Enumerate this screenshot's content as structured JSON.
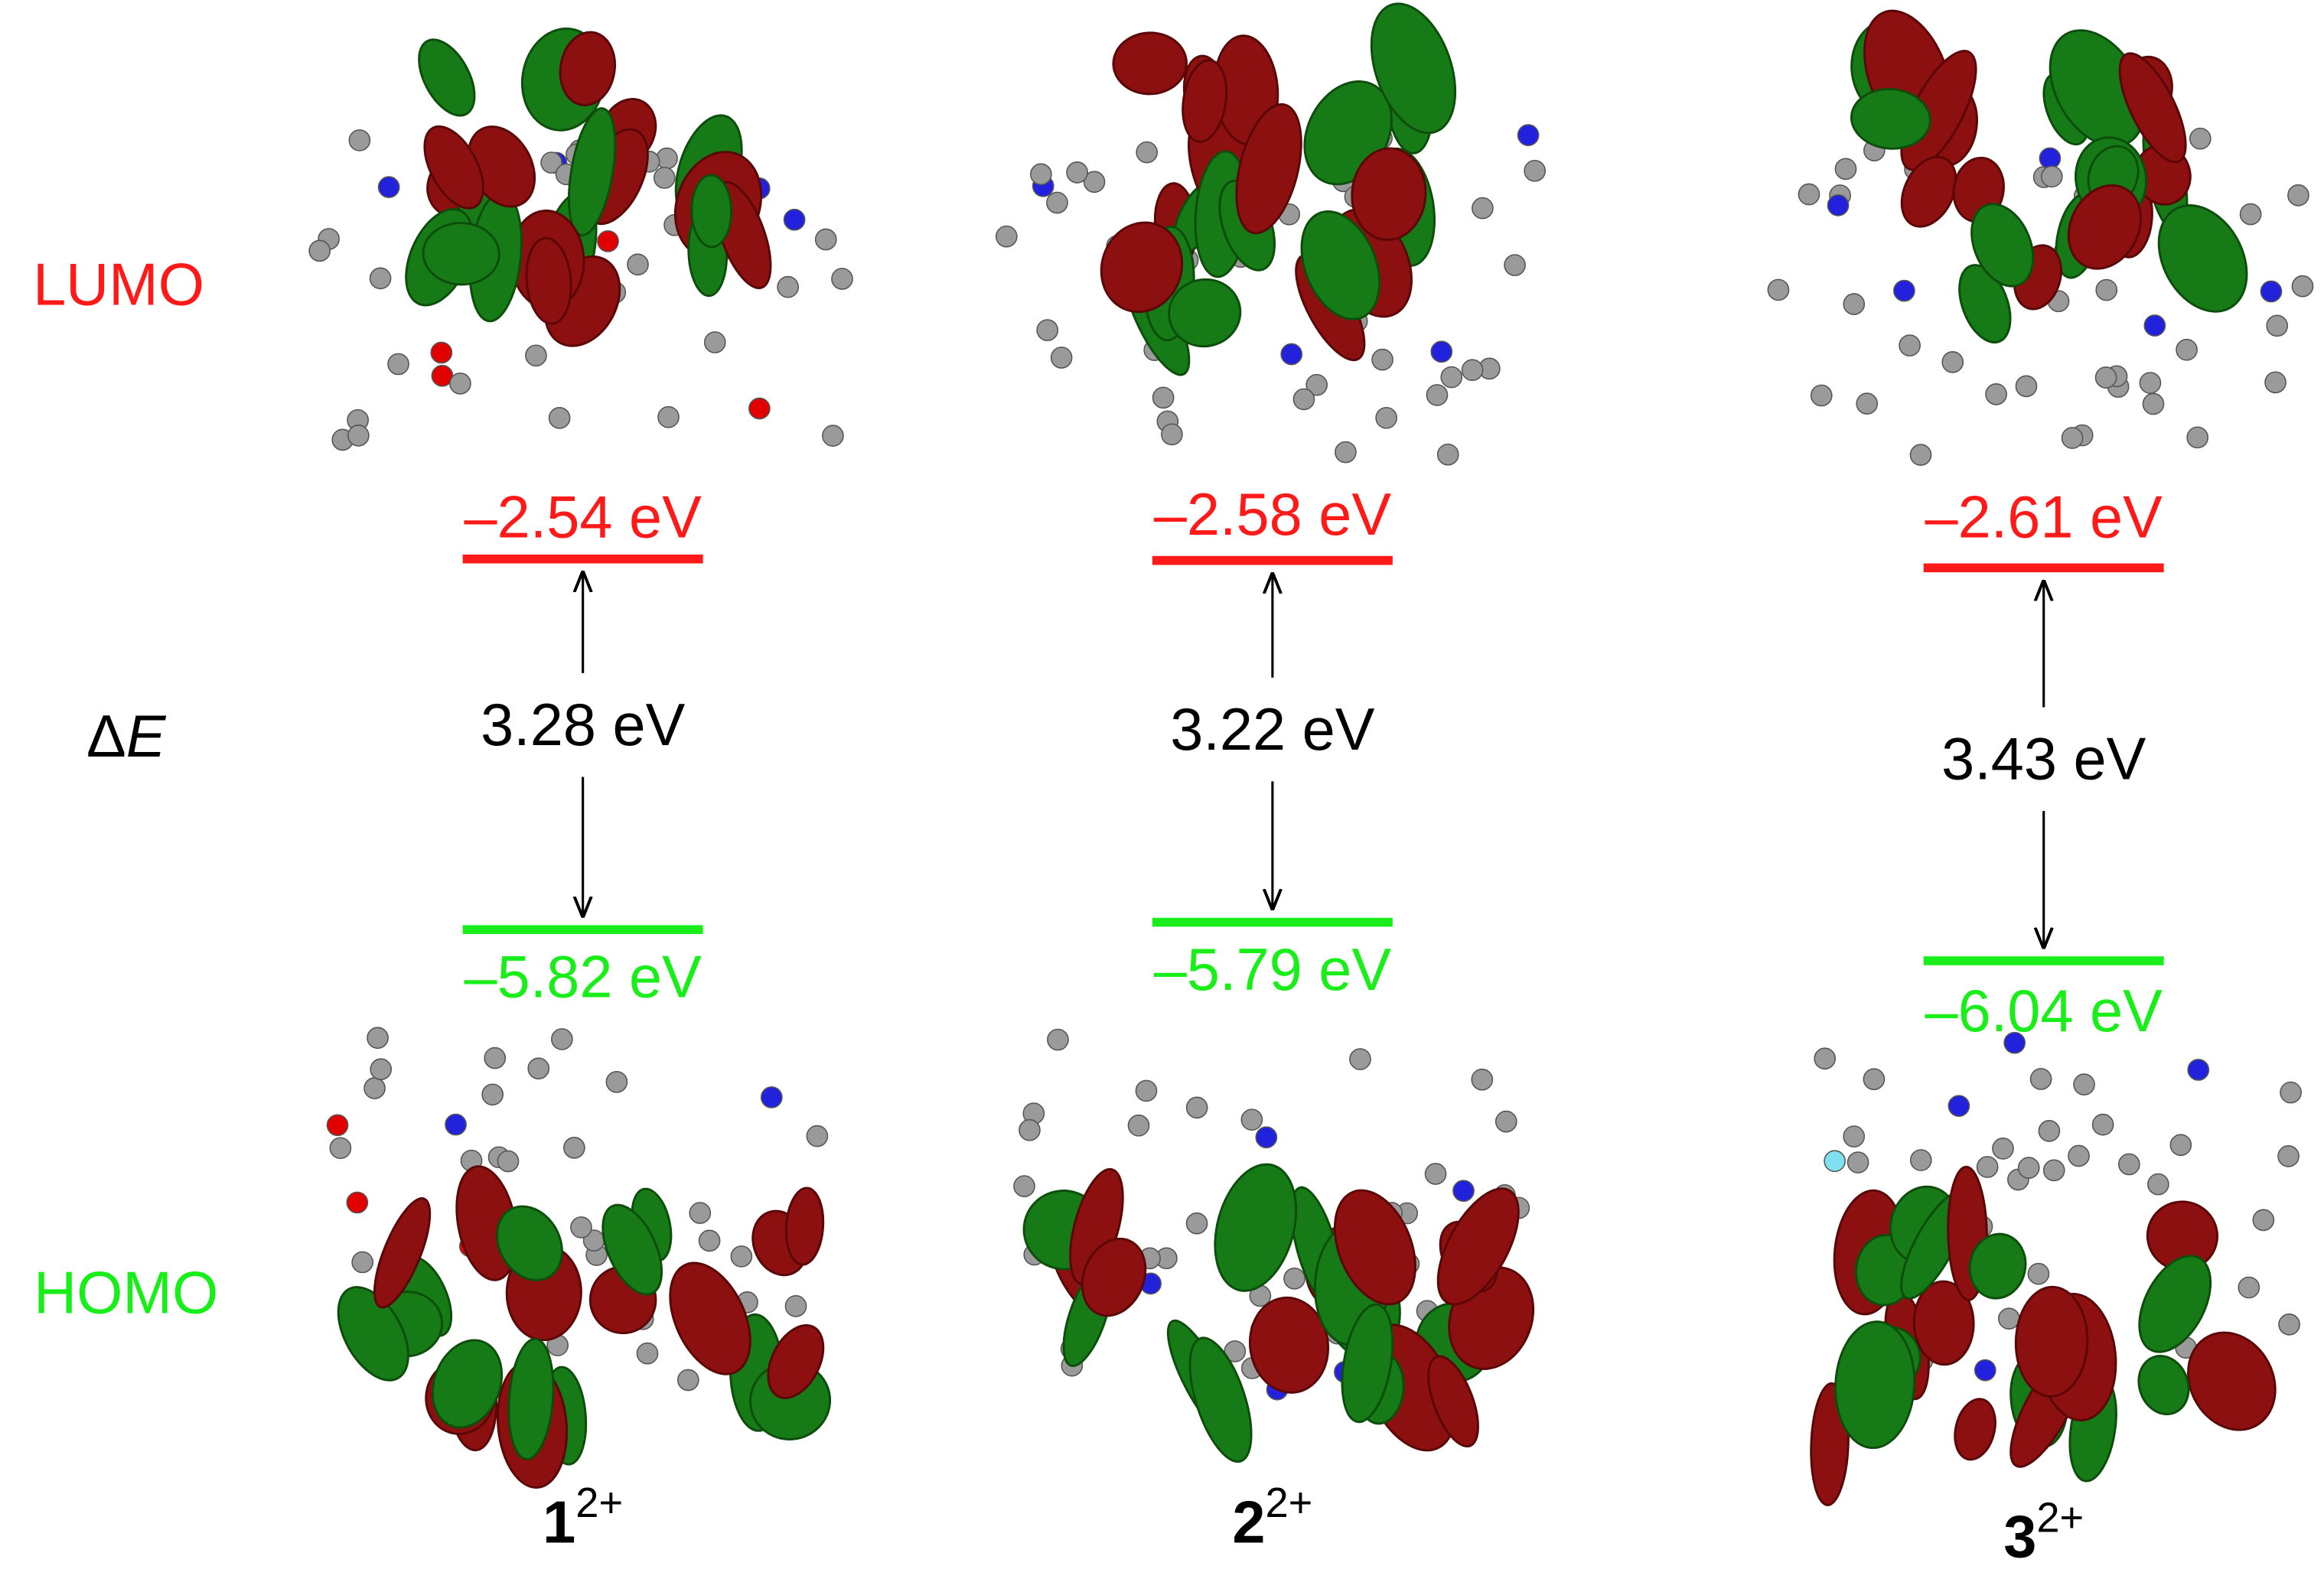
{
  "row_labels": {
    "lumo": "LUMO",
    "delta_symbol": "Δ",
    "delta_var": "E",
    "homo": "HOMO"
  },
  "compounds": [
    {
      "lumo": "–2.54 eV",
      "gap": "3.28 eV",
      "homo": "–5.82 eV",
      "number": "1",
      "charge": "2+"
    },
    {
      "lumo": "–2.58 eV",
      "gap": "3.22 eV",
      "homo": "–5.79 eV",
      "number": "2",
      "charge": "2+"
    },
    {
      "lumo": "–2.61 eV",
      "gap": "3.43 eV",
      "homo": "–6.04 eV",
      "number": "3",
      "charge": "2+"
    }
  ]
}
